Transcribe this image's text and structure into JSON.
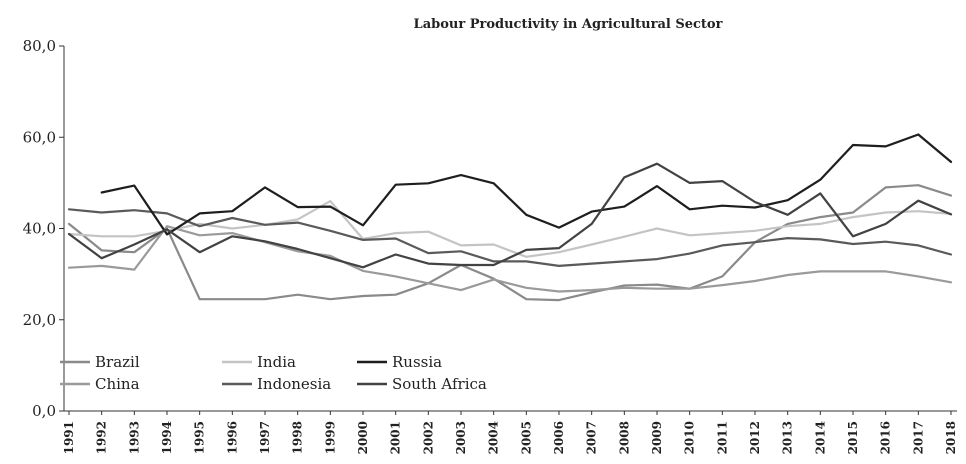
{
  "chart_data": {
    "type": "line",
    "title": "Labour Productivity in Agricultural Sector",
    "xlabel": "",
    "ylabel": "",
    "ylim": [
      0,
      80
    ],
    "yticks": [
      "0,0",
      "20,0",
      "40,0",
      "60,0",
      "80,0"
    ],
    "grid": false,
    "legend_position": "bottom-left",
    "categories": [
      "1991",
      "1992",
      "1993",
      "1994",
      "1995",
      "1996",
      "1997",
      "1998",
      "1999",
      "2000",
      "2001",
      "2002",
      "2003",
      "2004",
      "2005",
      "2006",
      "2007",
      "2008",
      "2009",
      "2010",
      "2011",
      "2012",
      "2013",
      "2014",
      "2015",
      "2016",
      "2017",
      "2018"
    ],
    "series": [
      {
        "name": "Brazil",
        "color": "#8a8a8a",
        "values": [
          41.0,
          35.2,
          34.8,
          40.0,
          24.5,
          24.5,
          24.5,
          25.5,
          24.5,
          25.2,
          25.5,
          28.0,
          32.0,
          29.0,
          24.5,
          24.3,
          26.0,
          27.5,
          27.7,
          26.8,
          29.5,
          37.0,
          41.0,
          42.5,
          43.5,
          49.0,
          49.5,
          47.2
        ]
      },
      {
        "name": "China",
        "color": "#9a9a9a",
        "values": [
          31.4,
          31.8,
          31.0,
          40.5,
          38.5,
          39.0,
          37.0,
          35.0,
          34.0,
          30.7,
          29.5,
          28.0,
          26.5,
          28.8,
          27.0,
          26.2,
          26.5,
          27.0,
          26.8,
          26.8,
          27.6,
          28.5,
          29.8,
          30.6,
          30.6,
          30.6,
          29.5,
          28.2
        ]
      },
      {
        "name": "India",
        "color": "#c4c4c4",
        "values": [
          38.8,
          38.3,
          38.3,
          39.5,
          41.0,
          40.0,
          40.8,
          42.0,
          46.0,
          37.7,
          39.0,
          39.3,
          36.3,
          36.5,
          33.8,
          34.8,
          36.5,
          38.2,
          40.0,
          38.5,
          39.0,
          39.5,
          40.5,
          41.0,
          42.5,
          43.5,
          43.8,
          43.2
        ]
      },
      {
        "name": "Indonesia",
        "color": "#5a5a5a",
        "values": [
          44.2,
          43.5,
          44.0,
          43.3,
          40.5,
          42.3,
          40.8,
          41.3,
          39.5,
          37.5,
          37.8,
          34.6,
          35.0,
          32.8,
          32.8,
          31.8,
          32.3,
          32.8,
          33.3,
          34.5,
          36.3,
          37.0,
          37.9,
          37.6,
          36.6,
          37.1,
          36.3,
          34.3
        ]
      },
      {
        "name": "Russia",
        "color": "#1e1e1e",
        "values": [
          null,
          47.9,
          49.4,
          38.7,
          43.3,
          43.8,
          49.0,
          44.7,
          44.8,
          40.7,
          49.6,
          49.9,
          51.7,
          49.9,
          43.0,
          40.2,
          43.7,
          44.8,
          49.3,
          44.2,
          45.0,
          44.6,
          46.2,
          50.7,
          58.3,
          58.0,
          60.6,
          54.6
        ]
      },
      {
        "name": "South Africa",
        "color": "#424242",
        "values": [
          38.8,
          33.5,
          36.5,
          39.8,
          34.8,
          38.3,
          37.2,
          35.5,
          33.5,
          31.5,
          34.3,
          32.3,
          32.0,
          32.0,
          35.3,
          35.7,
          41.0,
          51.2,
          54.2,
          50.0,
          50.4,
          45.8,
          43.0,
          47.7,
          38.3,
          41.0,
          46.1,
          43.1
        ]
      }
    ]
  }
}
